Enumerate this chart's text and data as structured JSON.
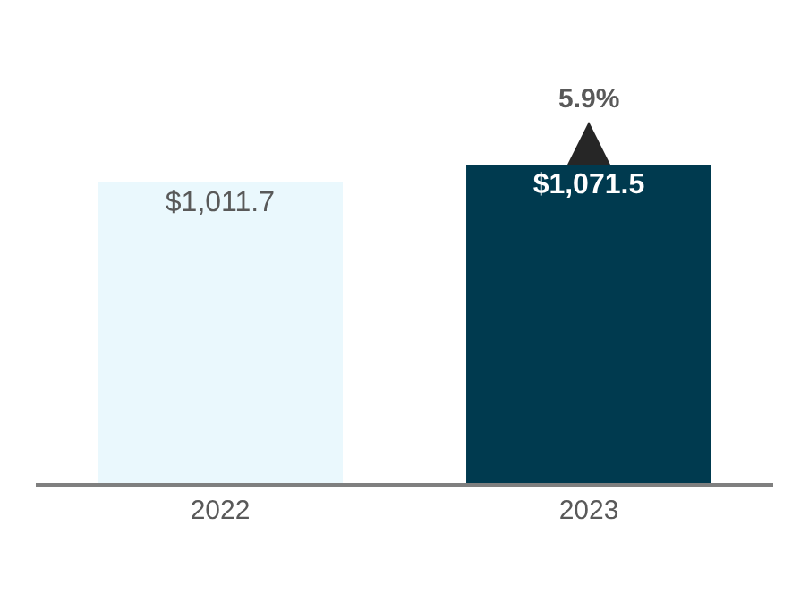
{
  "chart_data": {
    "type": "bar",
    "categories": [
      "2022",
      "2023"
    ],
    "values": [
      1011.7,
      1071.5
    ],
    "colors": [
      "#eaf8fd",
      "#003a4f"
    ],
    "value_labels": [
      "$1,011.7",
      "$1,071.5"
    ],
    "tick_labels": "x",
    "legend": false,
    "annotations": [
      {
        "text": "5.9%",
        "x": "2023",
        "y": 1071.5
      }
    ]
  }
}
